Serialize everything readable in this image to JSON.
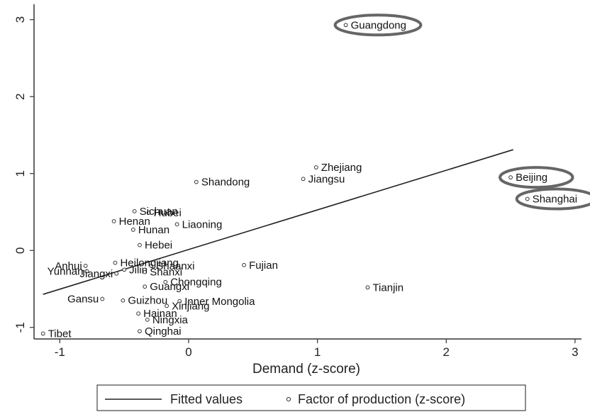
{
  "chart_data": {
    "type": "scatter",
    "xlabel": "Demand (z-score)",
    "ylabel": "",
    "xlim": [
      -1.2,
      3.05
    ],
    "ylim": [
      -1.15,
      3.2
    ],
    "xticks": [
      -1,
      0,
      1,
      2,
      3
    ],
    "yticks": [
      -1,
      0,
      1,
      2,
      3
    ],
    "grid": false,
    "legend_position": "bottom",
    "series": [
      {
        "name": "Factor of production (z-score)",
        "kind": "scatter",
        "points": [
          {
            "label": "Guangdong",
            "x": 1.22,
            "y": 2.93,
            "highlight": true
          },
          {
            "label": "Beijing",
            "x": 2.5,
            "y": 0.95,
            "highlight": true
          },
          {
            "label": "Shanghai",
            "x": 2.63,
            "y": 0.67,
            "highlight": true
          },
          {
            "label": "Zhejiang",
            "x": 0.99,
            "y": 1.08
          },
          {
            "label": "Jiangsu",
            "x": 0.89,
            "y": 0.93
          },
          {
            "label": "Shandong",
            "x": 0.06,
            "y": 0.89
          },
          {
            "label": "Sichuan",
            "x": -0.42,
            "y": 0.51
          },
          {
            "label": "Hubei",
            "x": -0.31,
            "y": 0.49
          },
          {
            "label": "Henan",
            "x": -0.58,
            "y": 0.38
          },
          {
            "label": "Liaoning",
            "x": -0.09,
            "y": 0.34
          },
          {
            "label": "Hunan",
            "x": -0.43,
            "y": 0.27
          },
          {
            "label": "Hebei",
            "x": -0.38,
            "y": 0.07
          },
          {
            "label": "Heilongjiang",
            "x": -0.57,
            "y": -0.16
          },
          {
            "label": "Anhui",
            "x": -0.8,
            "y": -0.2
          },
          {
            "label": "Yunnan",
            "x": -0.79,
            "y": -0.27
          },
          {
            "label": "Shaanxi",
            "x": -0.29,
            "y": -0.2
          },
          {
            "label": "Jilin",
            "x": -0.5,
            "y": -0.25
          },
          {
            "label": "Shanxi",
            "x": -0.34,
            "y": -0.28
          },
          {
            "label": "Fujian",
            "x": 0.43,
            "y": -0.19
          },
          {
            "label": "Jiangxi",
            "x": -0.56,
            "y": -0.3
          },
          {
            "label": "Chongqing",
            "x": -0.18,
            "y": -0.41
          },
          {
            "label": "Guangxi",
            "x": -0.34,
            "y": -0.47
          },
          {
            "label": "Tianjin",
            "x": 1.39,
            "y": -0.48
          },
          {
            "label": "Gansu",
            "x": -0.67,
            "y": -0.63
          },
          {
            "label": "Guizhou",
            "x": -0.51,
            "y": -0.65
          },
          {
            "label": "Inner Mongolia",
            "x": -0.07,
            "y": -0.66
          },
          {
            "label": "Xinjiang",
            "x": -0.17,
            "y": -0.72
          },
          {
            "label": "Hainan",
            "x": -0.39,
            "y": -0.82
          },
          {
            "label": "Ningxia",
            "x": -0.32,
            "y": -0.9
          },
          {
            "label": "Qinghai",
            "x": -0.38,
            "y": -1.05
          },
          {
            "label": "Tibet",
            "x": -1.13,
            "y": -1.08
          }
        ]
      },
      {
        "name": "Fitted values",
        "kind": "line",
        "points": [
          {
            "x": -1.13,
            "y": -0.57
          },
          {
            "x": 2.52,
            "y": 1.31
          }
        ]
      }
    ],
    "legend": [
      "Fitted values",
      "Factor of production (z-score)"
    ]
  }
}
